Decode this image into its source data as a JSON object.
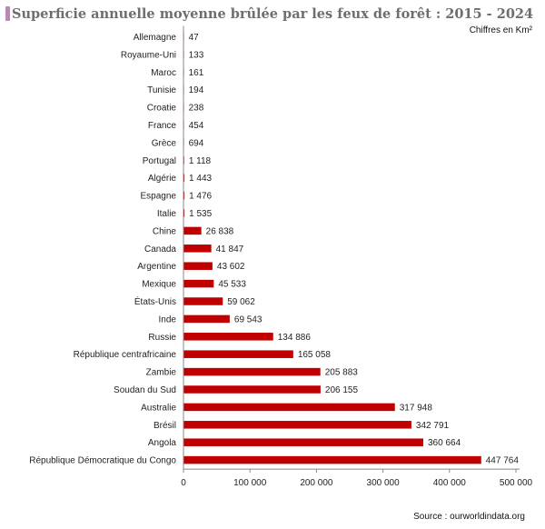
{
  "chart_data": {
    "type": "bar",
    "orientation": "horizontal",
    "title": "Superficie annuelle moyenne brûlée par les feux de forêt : 2015 - 2024",
    "units_note": "Chiffres en Km²",
    "source": "Source : ourworldindata.org",
    "xlim": [
      0,
      500000
    ],
    "xticks": [
      0,
      100000,
      200000,
      300000,
      400000,
      500000
    ],
    "xtick_labels": [
      "0",
      "100 000",
      "200 000",
      "300 000",
      "400 000",
      "500 000"
    ],
    "bar_color": "#c00000",
    "categories": [
      "Allemagne",
      "Royaume-Uni",
      "Maroc",
      "Tunisie",
      "Croatie",
      "France",
      "Grèce",
      "Portugal",
      "Algérie",
      "Espagne",
      "Italie",
      "Chine",
      "Canada",
      "Argentine",
      "Mexique",
      "États-Unis",
      "Inde",
      "Russie",
      "République centrafricaine",
      "Zambie",
      "Soudan du Sud",
      "Australie",
      "Brésil",
      "Angola",
      "République Démocratique du Congo"
    ],
    "values": [
      47,
      133,
      161,
      194,
      238,
      454,
      694,
      1118,
      1443,
      1476,
      1535,
      26838,
      41847,
      43602,
      45533,
      59062,
      69543,
      134886,
      165058,
      205883,
      206155,
      317948,
      342791,
      360664,
      447764
    ],
    "value_labels": [
      "47",
      "133",
      "161",
      "194",
      "238",
      "454",
      "694",
      "1 118",
      "1 443",
      "1 476",
      "1 535",
      "26 838",
      "41 847",
      "43 602",
      "45 533",
      "59 062",
      "69 543",
      "134 886",
      "165 058",
      "205 883",
      "206 155",
      "317 948",
      "342 791",
      "360 664",
      "447 764"
    ]
  }
}
